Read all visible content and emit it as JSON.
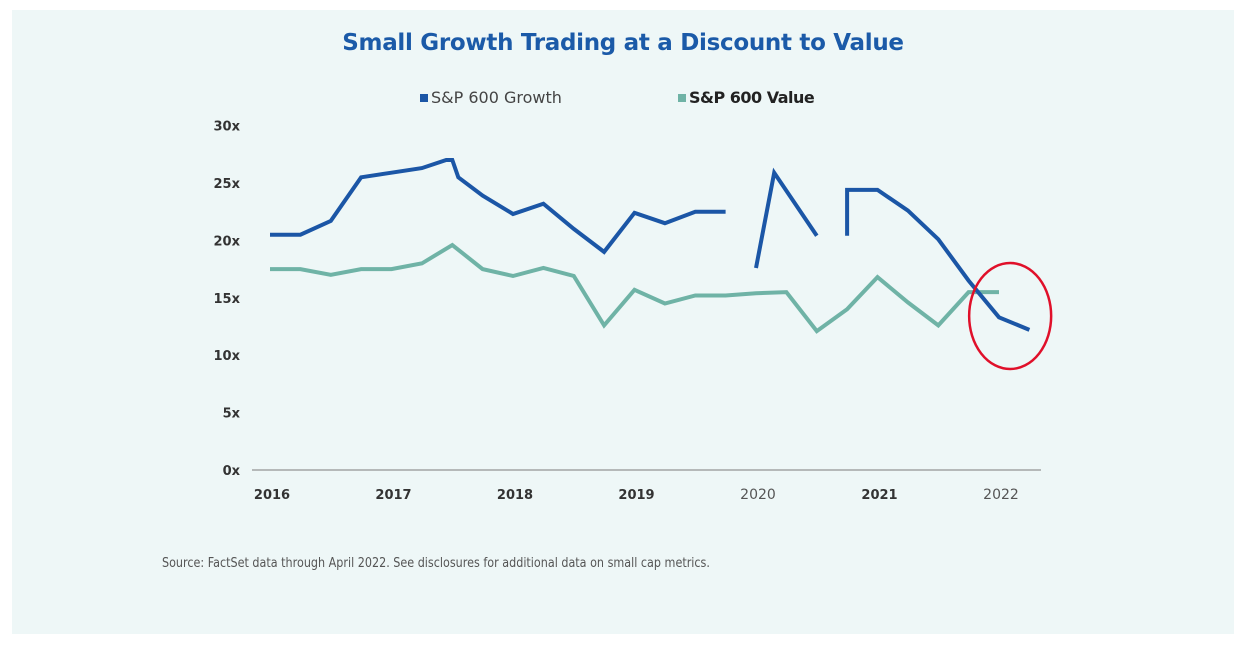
{
  "chart_data": {
    "type": "line",
    "title": "Small Growth Trading at a Discount to Value",
    "xlabel": "",
    "ylabel": "",
    "ylim": [
      0,
      30
    ],
    "y_ticks": [
      "0x",
      "5x",
      "10x",
      "15x",
      "20x",
      "25x",
      "30x"
    ],
    "y_tick_values": [
      0,
      5,
      10,
      15,
      20,
      25,
      30
    ],
    "x_ticks": [
      "2016",
      "2017",
      "2018",
      "2019",
      "2020",
      "2021",
      "2022"
    ],
    "x_tick_values": [
      2016,
      2017,
      2018,
      2019,
      2020,
      2021,
      2022
    ],
    "xlim": [
      2016,
      2022.35
    ],
    "grid": false,
    "legend_position": "top-center",
    "series": [
      {
        "name": "S&P 600 Growth",
        "color": "#1b56a6",
        "segments": [
          {
            "x": [
              2016.0,
              2016.25,
              2016.5,
              2016.75,
              2017.0,
              2017.25,
              2017.45,
              2017.5,
              2017.55,
              2017.75,
              2018.0,
              2018.25,
              2018.5,
              2018.75,
              2019.0,
              2019.25,
              2019.5,
              2019.75
            ],
            "y": [
              20.5,
              20.5,
              21.7,
              25.5,
              25.9,
              26.3,
              27.0,
              27.0,
              25.5,
              23.9,
              22.3,
              23.2,
              21.0,
              19.0,
              22.4,
              21.5,
              22.5,
              22.5
            ]
          },
          {
            "x": [
              2020.0,
              2020.15,
              2020.5
            ],
            "y": [
              17.6,
              25.9,
              20.4
            ]
          },
          {
            "x": [
              2020.75,
              2020.75,
              2021.0,
              2021.25,
              2021.5,
              2021.75,
              2022.0,
              2022.25
            ],
            "y": [
              20.4,
              24.4,
              24.4,
              22.6,
              20.1,
              16.5,
              13.3,
              12.2
            ]
          }
        ]
      },
      {
        "name": "S&P 600 Value",
        "color": "#6fb3a6",
        "segments": [
          {
            "x": [
              2016.0,
              2016.25,
              2016.5,
              2016.75,
              2017.0,
              2017.25,
              2017.5,
              2017.75,
              2018.0,
              2018.25,
              2018.5,
              2018.75,
              2019.0,
              2019.25,
              2019.5,
              2019.75,
              2020.0,
              2020.25,
              2020.5,
              2020.75,
              2021.0,
              2021.25,
              2021.5,
              2021.75,
              2022.0
            ],
            "y": [
              17.5,
              17.5,
              17.0,
              17.5,
              17.5,
              18.0,
              19.6,
              17.5,
              16.9,
              17.6,
              16.9,
              12.6,
              15.7,
              14.5,
              15.2,
              15.2,
              15.4,
              15.5,
              12.1,
              14.0,
              16.8,
              14.6,
              12.6,
              15.5,
              15.5
            ]
          }
        ]
      }
    ],
    "annotations": [
      {
        "type": "ellipse",
        "color": "#e0102a",
        "description": "red circle highlighting growth crossing below value",
        "x_center": 2022.1,
        "y_center": 13.5
      }
    ]
  },
  "legend": {
    "growth_label": "S&P 600 Growth",
    "value_label": "S&P 600 Value"
  },
  "source_note": "Source: FactSet data through April 2022. See disclosures for additional data on small cap metrics."
}
